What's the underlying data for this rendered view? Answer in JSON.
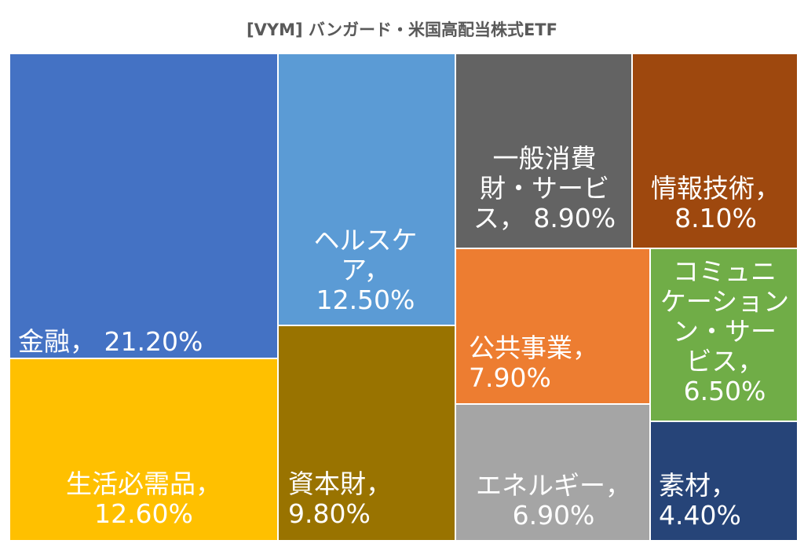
{
  "chart_data": {
    "type": "treemap",
    "title": "[VYM] バンガード・米国高配当株式ETF",
    "items": [
      {
        "id": "financials",
        "name": "金融",
        "value": 21.2,
        "text": "金融， 21.20%",
        "color": "#4472C4"
      },
      {
        "id": "staples",
        "name": "生活必需品",
        "value": 12.6,
        "text": "生活必需品，\n12.60%",
        "color": "#FFC000"
      },
      {
        "id": "healthcare",
        "name": "ヘルスケア",
        "value": 12.5,
        "text": "ヘルスケ\nア，\n12.50%",
        "color": "#5B9BD5"
      },
      {
        "id": "industrials",
        "name": "資本財",
        "value": 9.8,
        "text": "資本財，\n9.80%",
        "color": "#997300"
      },
      {
        "id": "discretionary",
        "name": "一般消費財・サービス",
        "value": 8.9,
        "text": "一般消費\n財・サービ\nス， 8.90%",
        "color": "#636363"
      },
      {
        "id": "tech",
        "name": "情報技術",
        "value": 8.1,
        "text": "情報技術，\n8.10%",
        "color": "#9E480E"
      },
      {
        "id": "utilities",
        "name": "公共事業",
        "value": 7.9,
        "text": "公共事業，\n7.90%",
        "color": "#ED7D31"
      },
      {
        "id": "energy",
        "name": "エネルギー",
        "value": 6.9,
        "text": "エネルギー，\n6.90%",
        "color": "#A5A5A5"
      },
      {
        "id": "communication",
        "name": "コミュニケーション・サービス",
        "value": 6.5,
        "text": "コミュニ\nケーション\nン・サー\nビス，\n6.50%",
        "color": "#70AD47"
      },
      {
        "id": "materials",
        "name": "素材",
        "value": 4.4,
        "text": "素材，\n4.40%",
        "color": "#264478"
      }
    ]
  }
}
